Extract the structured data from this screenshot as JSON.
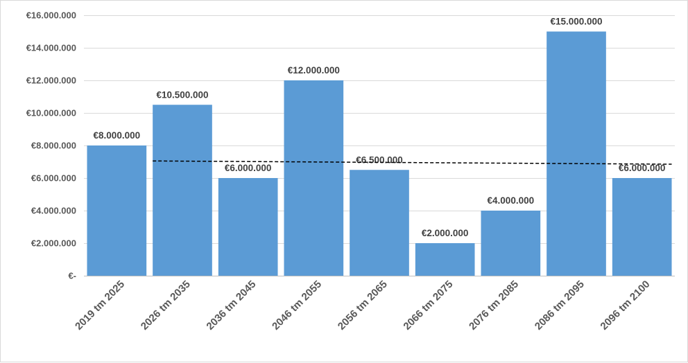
{
  "chart_data": {
    "type": "bar",
    "categories": [
      "2019 tm 2025",
      "2026 tm 2035",
      "2036 tm 2045",
      "2046 tm 2055",
      "2056 tm 2065",
      "2066 tm 2075",
      "2076 tm 2085",
      "2086 tm 2095",
      "2096 tm 2100"
    ],
    "values": [
      8000000,
      10500000,
      6000000,
      12000000,
      6500000,
      2000000,
      4000000,
      15000000,
      6000000
    ],
    "data_labels": [
      "€8.000.000",
      "€10.500.000",
      "€6.000.000",
      "€12.000.000",
      "€6.500.000",
      "€2.000.000",
      "€4.000.000",
      "€15.000.000",
      "€6.000.000"
    ],
    "y_ticks": [
      0,
      2000000,
      4000000,
      6000000,
      8000000,
      10000000,
      12000000,
      14000000,
      16000000
    ],
    "y_tick_labels": [
      "€-",
      "€2.000.000",
      "€4.000.000",
      "€6.000.000",
      "€8.000.000",
      "€10.000.000",
      "€12.000.000",
      "€14.000.000",
      "€16.000.000"
    ],
    "ylim": [
      0,
      16000000
    ],
    "grid": true,
    "legend": "none",
    "bar_color": "#5b9bd5",
    "trendline": {
      "style": "dashed",
      "color": "#000000",
      "start": {
        "category": "2026 tm 2035",
        "value": 7050000
      },
      "end": {
        "category": "2096 tm 2100",
        "value": 6850000
      }
    },
    "title": "",
    "xlabel": "",
    "ylabel": ""
  }
}
